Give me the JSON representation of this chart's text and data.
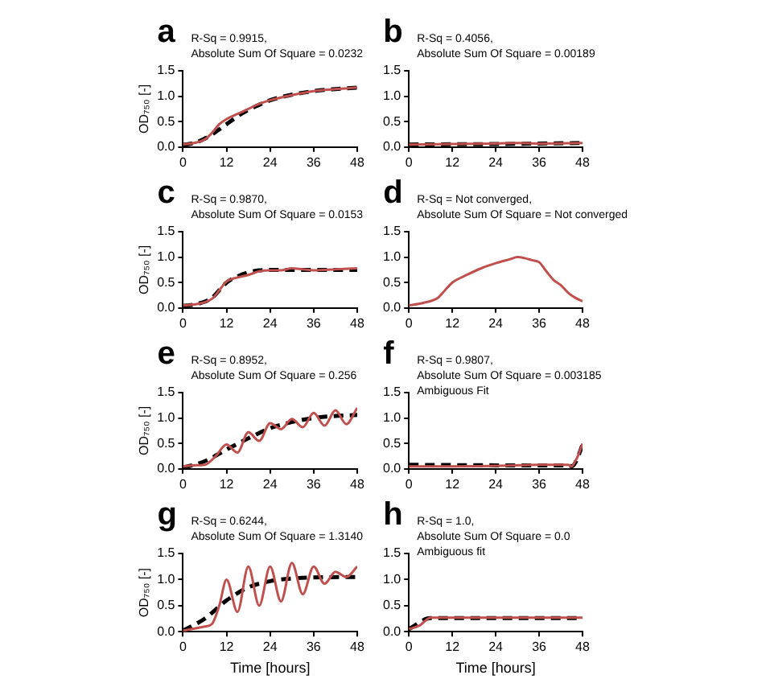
{
  "chart_data": [
    {
      "type": "line",
      "title": "a",
      "ylabel": "OD₇₅₀ [-]",
      "annotations": [
        "R-Sq = 0.9915,",
        "Absolute Sum Of Square = 0.0232"
      ],
      "xlim": [
        0,
        48
      ],
      "ylim": [
        0,
        1.5
      ],
      "xticks": [
        0,
        12,
        24,
        36,
        48
      ],
      "yticks": [
        {
          "value": 0,
          "label": "0.0"
        },
        {
          "value": 0.5,
          "label": "0.5"
        },
        {
          "value": 1,
          "label": "1.0"
        },
        {
          "value": 1.5,
          "label": "1.5"
        }
      ],
      "marker": "none",
      "series": [
        {
          "color": "#c0504d",
          "line_style": "solid",
          "x": [
            0,
            3,
            6,
            8,
            10,
            12,
            15,
            18,
            21,
            24,
            30,
            36,
            42,
            48
          ],
          "values": [
            0.05,
            0.08,
            0.15,
            0.28,
            0.45,
            0.55,
            0.65,
            0.75,
            0.85,
            0.92,
            1.02,
            1.1,
            1.14,
            1.17
          ]
        },
        {
          "color": "#000000",
          "line_style": "dashed",
          "x": [
            0,
            4,
            8,
            12,
            16,
            20,
            24,
            30,
            36,
            42,
            48
          ],
          "values": [
            0.04,
            0.1,
            0.25,
            0.45,
            0.65,
            0.8,
            0.92,
            1.03,
            1.1,
            1.14,
            1.17
          ]
        }
      ]
    },
    {
      "type": "line",
      "title": "b",
      "annotations": [
        "R-Sq = 0.4056,",
        "Absolute Sum Of Square = 0.00189"
      ],
      "xlim": [
        0,
        48
      ],
      "ylim": [
        0,
        1.5
      ],
      "xticks": [
        0,
        12,
        24,
        36,
        48
      ],
      "yticks": [
        {
          "value": 0,
          "label": "0.0"
        },
        {
          "value": 0.5,
          "label": "0.5"
        },
        {
          "value": 1,
          "label": "1.0"
        },
        {
          "value": 1.5,
          "label": "1.5"
        }
      ],
      "marker": "none",
      "series": [
        {
          "color": "#c0504d",
          "line_style": "solid",
          "x": [
            0,
            12,
            24,
            30,
            36,
            48
          ],
          "values": [
            0.05,
            0.06,
            0.07,
            0.08,
            0.07,
            0.08
          ]
        },
        {
          "color": "#000000",
          "line_style": "dashed",
          "x": [
            0,
            24,
            48
          ],
          "values": [
            0.05,
            0.06,
            0.08
          ]
        }
      ]
    },
    {
      "type": "line",
      "title": "c",
      "ylabel": "OD₇₅₀ [-]",
      "annotations": [
        "R-Sq = 0.9870,",
        "Absolute Sum Of Square = 0.0153"
      ],
      "xlim": [
        0,
        48
      ],
      "ylim": [
        0,
        1.5
      ],
      "xticks": [
        0,
        12,
        24,
        36,
        48
      ],
      "yticks": [
        {
          "value": 0,
          "label": "0.0"
        },
        {
          "value": 0.5,
          "label": "0.5"
        },
        {
          "value": 1,
          "label": "1.0"
        },
        {
          "value": 1.5,
          "label": "1.5"
        }
      ],
      "marker": "none",
      "series": [
        {
          "color": "#c0504d",
          "line_style": "solid",
          "x": [
            0,
            4,
            8,
            10,
            12,
            15,
            18,
            21,
            24,
            27,
            30,
            33,
            36,
            42,
            48
          ],
          "values": [
            0.05,
            0.08,
            0.18,
            0.35,
            0.52,
            0.6,
            0.65,
            0.72,
            0.74,
            0.74,
            0.78,
            0.76,
            0.74,
            0.76,
            0.78
          ]
        },
        {
          "color": "#000000",
          "line_style": "dashed",
          "x": [
            0,
            4,
            8,
            10,
            12,
            15,
            18,
            21,
            24,
            36,
            48
          ],
          "values": [
            0.04,
            0.08,
            0.2,
            0.35,
            0.5,
            0.62,
            0.7,
            0.74,
            0.75,
            0.75,
            0.75
          ]
        }
      ]
    },
    {
      "type": "line",
      "title": "d",
      "annotations": [
        "R-Sq = Not converged,",
        "Absolute Sum Of Square = Not converged"
      ],
      "xlim": [
        0,
        48
      ],
      "ylim": [
        0,
        1.5
      ],
      "xticks": [
        0,
        12,
        24,
        36,
        48
      ],
      "yticks": [
        {
          "value": 0,
          "label": "0.0"
        },
        {
          "value": 0.5,
          "label": "0.5"
        },
        {
          "value": 1,
          "label": "1.0"
        },
        {
          "value": 1.5,
          "label": "1.5"
        }
      ],
      "marker": "none",
      "series": [
        {
          "color": "#c0504d",
          "line_style": "solid",
          "x": [
            0,
            4,
            8,
            10,
            12,
            16,
            20,
            24,
            28,
            30,
            32,
            34,
            36,
            38,
            40,
            42,
            44,
            46,
            48
          ],
          "values": [
            0.05,
            0.1,
            0.2,
            0.35,
            0.5,
            0.65,
            0.78,
            0.88,
            0.96,
            1.0,
            0.98,
            0.94,
            0.9,
            0.72,
            0.55,
            0.45,
            0.3,
            0.2,
            0.13
          ]
        }
      ]
    },
    {
      "type": "line",
      "title": "e",
      "ylabel": "OD₇₅₀ [-]",
      "annotations": [
        "R-Sq = 0.8952,",
        "Absolute Sum Of Square = 0.256"
      ],
      "xlim": [
        0,
        48
      ],
      "ylim": [
        0,
        1.5
      ],
      "xticks": [
        0,
        12,
        24,
        36,
        48
      ],
      "yticks": [
        {
          "value": 0,
          "label": "0.0"
        },
        {
          "value": 0.5,
          "label": "0.5"
        },
        {
          "value": 1,
          "label": "1.0"
        },
        {
          "value": 1.5,
          "label": "1.5"
        }
      ],
      "marker": "none",
      "series": [
        {
          "color": "#c0504d",
          "line_style": "solid",
          "x": [
            0,
            3,
            6,
            9,
            12,
            15,
            18,
            21,
            24,
            27,
            30,
            33,
            36,
            39,
            42,
            45,
            48
          ],
          "values": [
            0.05,
            0.07,
            0.08,
            0.25,
            0.48,
            0.32,
            0.72,
            0.55,
            0.9,
            0.78,
            0.98,
            0.82,
            1.1,
            0.85,
            1.15,
            0.88,
            1.2
          ]
        },
        {
          "color": "#000000",
          "line_style": "dashed",
          "x": [
            0,
            6,
            12,
            18,
            24,
            30,
            36,
            42,
            48
          ],
          "values": [
            0.02,
            0.15,
            0.38,
            0.6,
            0.8,
            0.92,
            1.0,
            1.04,
            1.06
          ]
        }
      ]
    },
    {
      "type": "line",
      "title": "f",
      "annotations": [
        "R-Sq = 0.9807,",
        "Absolute Sum Of Square = 0.003185",
        "Ambiguous Fit"
      ],
      "xlim": [
        0,
        48
      ],
      "ylim": [
        0,
        1.5
      ],
      "xticks": [
        0,
        12,
        24,
        36,
        48
      ],
      "yticks": [
        {
          "value": 0,
          "label": "0.0"
        },
        {
          "value": 0.5,
          "label": "0.5"
        },
        {
          "value": 1,
          "label": "1.0"
        },
        {
          "value": 1.5,
          "label": "1.5"
        }
      ],
      "marker": "none",
      "series": [
        {
          "color": "#c0504d",
          "line_style": "solid",
          "x": [
            0,
            12,
            24,
            36,
            44,
            45,
            46,
            47,
            48
          ],
          "values": [
            0.05,
            0.05,
            0.06,
            0.08,
            0.08,
            0.05,
            0.15,
            0.3,
            0.5
          ]
        },
        {
          "color": "#000000",
          "line_style": "dashed",
          "x": [
            0,
            24,
            44,
            45,
            46,
            47,
            48
          ],
          "values": [
            0.08,
            0.07,
            0.07,
            0.05,
            0.12,
            0.28,
            0.48
          ]
        }
      ]
    },
    {
      "type": "line",
      "title": "g",
      "xlabel": "Time [hours]",
      "ylabel": "OD₇₅₀ [-]",
      "annotations": [
        "R-Sq = 0.6244,",
        "Absolute Sum Of Square = 1.3140"
      ],
      "xlim": [
        0,
        48
      ],
      "ylim": [
        0,
        1.5
      ],
      "xticks": [
        0,
        12,
        24,
        36,
        48
      ],
      "yticks": [
        {
          "value": 0,
          "label": "0.0"
        },
        {
          "value": 0.5,
          "label": "0.5"
        },
        {
          "value": 1,
          "label": "1.0"
        },
        {
          "value": 1.5,
          "label": "1.5"
        }
      ],
      "marker": "none",
      "series": [
        {
          "color": "#c0504d",
          "line_style": "solid",
          "x": [
            0,
            6,
            8,
            10,
            12,
            15,
            18,
            21,
            24,
            27,
            30,
            33,
            36,
            39,
            42,
            45,
            48
          ],
          "values": [
            0.02,
            0.1,
            0.15,
            0.5,
            1.0,
            0.38,
            1.25,
            0.5,
            1.25,
            0.58,
            1.32,
            0.72,
            1.25,
            0.92,
            1.15,
            1.05,
            1.25
          ]
        },
        {
          "color": "#000000",
          "line_style": "dashed",
          "x": [
            0,
            6,
            12,
            18,
            24,
            30,
            36,
            48
          ],
          "values": [
            0.02,
            0.25,
            0.6,
            0.85,
            0.97,
            1.02,
            1.04,
            1.05
          ]
        }
      ]
    },
    {
      "type": "line",
      "title": "h",
      "xlabel": "Time [hours]",
      "annotations": [
        "R-Sq = 1.0,",
        "Absolute Sum Of Square = 0.0",
        "Ambiguous fit"
      ],
      "xlim": [
        0,
        48
      ],
      "ylim": [
        0,
        1.5
      ],
      "xticks": [
        0,
        12,
        24,
        36,
        48
      ],
      "yticks": [
        {
          "value": 0,
          "label": "0.0"
        },
        {
          "value": 0.5,
          "label": "0.5"
        },
        {
          "value": 1,
          "label": "1.0"
        },
        {
          "value": 1.5,
          "label": "1.5"
        }
      ],
      "marker": "none",
      "series": [
        {
          "color": "#c0504d",
          "line_style": "solid",
          "x": [
            0,
            3,
            6,
            48
          ],
          "values": [
            0.05,
            0.12,
            0.27,
            0.27
          ]
        },
        {
          "color": "#000000",
          "line_style": "dashed",
          "x": [
            0,
            6,
            48
          ],
          "values": [
            0.05,
            0.26,
            0.26
          ]
        }
      ]
    }
  ]
}
